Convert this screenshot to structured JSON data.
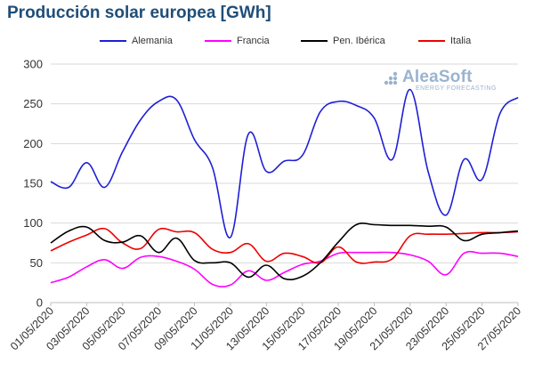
{
  "chart_data": {
    "type": "line",
    "title": "Producción solar europea [GWh]",
    "x": [
      "01/05/2020",
      "02/05/2020",
      "03/05/2020",
      "04/05/2020",
      "05/05/2020",
      "06/05/2020",
      "07/05/2020",
      "08/05/2020",
      "09/05/2020",
      "10/05/2020",
      "11/05/2020",
      "12/05/2020",
      "13/05/2020",
      "14/05/2020",
      "15/05/2020",
      "16/05/2020",
      "17/05/2020",
      "18/05/2020",
      "19/05/2020",
      "20/05/2020",
      "21/05/2020",
      "22/05/2020",
      "23/05/2020",
      "24/05/2020",
      "25/05/2020",
      "26/05/2020",
      "27/05/2020"
    ],
    "x_tick_labels": [
      "01/05/2020",
      "03/05/2020",
      "05/05/2020",
      "07/05/2020",
      "09/05/2020",
      "11/05/2020",
      "13/05/2020",
      "15/05/2020",
      "17/05/2020",
      "19/05/2020",
      "21/05/2020",
      "23/05/2020",
      "25/05/2020",
      "27/05/2020"
    ],
    "ylim": [
      0,
      300
    ],
    "y_ticks": [
      0,
      50,
      100,
      150,
      200,
      250,
      300
    ],
    "grid": "horizontal",
    "legend_position": "top",
    "series": [
      {
        "name": "Alemania",
        "color": "#1f1fd6",
        "values": [
          152,
          145,
          176,
          145,
          190,
          230,
          253,
          255,
          205,
          170,
          82,
          212,
          165,
          178,
          185,
          240,
          253,
          248,
          232,
          180,
          268,
          165,
          110,
          180,
          155,
          238,
          258
        ]
      },
      {
        "name": "Francia",
        "color": "#ff00ff",
        "values": [
          25,
          32,
          45,
          54,
          43,
          57,
          58,
          52,
          42,
          23,
          22,
          40,
          28,
          38,
          48,
          52,
          62,
          63,
          63,
          63,
          60,
          52,
          35,
          62,
          62,
          62,
          58
        ]
      },
      {
        "name": "Pen. Ibérica",
        "color": "#000000",
        "values": [
          75,
          90,
          95,
          78,
          76,
          84,
          63,
          81,
          53,
          50,
          50,
          32,
          47,
          30,
          33,
          50,
          76,
          98,
          98,
          97,
          97,
          96,
          95,
          78,
          86,
          88,
          90
        ]
      },
      {
        "name": "Italia",
        "color": "#ee0000",
        "values": [
          65,
          76,
          85,
          93,
          75,
          68,
          92,
          89,
          88,
          67,
          63,
          74,
          52,
          62,
          58,
          50,
          70,
          51,
          51,
          55,
          84,
          86,
          86,
          87,
          88,
          88,
          89
        ]
      }
    ]
  },
  "watermark": {
    "main": "AleaSoft",
    "sub": "ENERGY FORECASTING"
  }
}
